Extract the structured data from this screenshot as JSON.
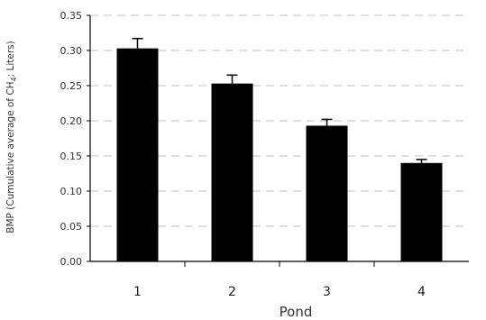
{
  "chart_data": {
    "type": "bar",
    "xlabel": "Pond",
    "ylabel": "BMP (Cumulative average of CH4; Liters)",
    "categories": [
      "1",
      "2",
      "3",
      "4"
    ],
    "series": [
      {
        "values": [
          0.303,
          0.253,
          0.193,
          0.14
        ],
        "errors": [
          0.014,
          0.012,
          0.009,
          0.005
        ]
      }
    ],
    "ylim": [
      0,
      0.35
    ],
    "yticks": [
      "0.00",
      "0.05",
      "0.10",
      "0.15",
      "0.20",
      "0.25",
      "0.30",
      "0.35"
    ],
    "grid": true,
    "legend": "none",
    "bar_color": "#000000",
    "grid_color": "#cccccc"
  }
}
